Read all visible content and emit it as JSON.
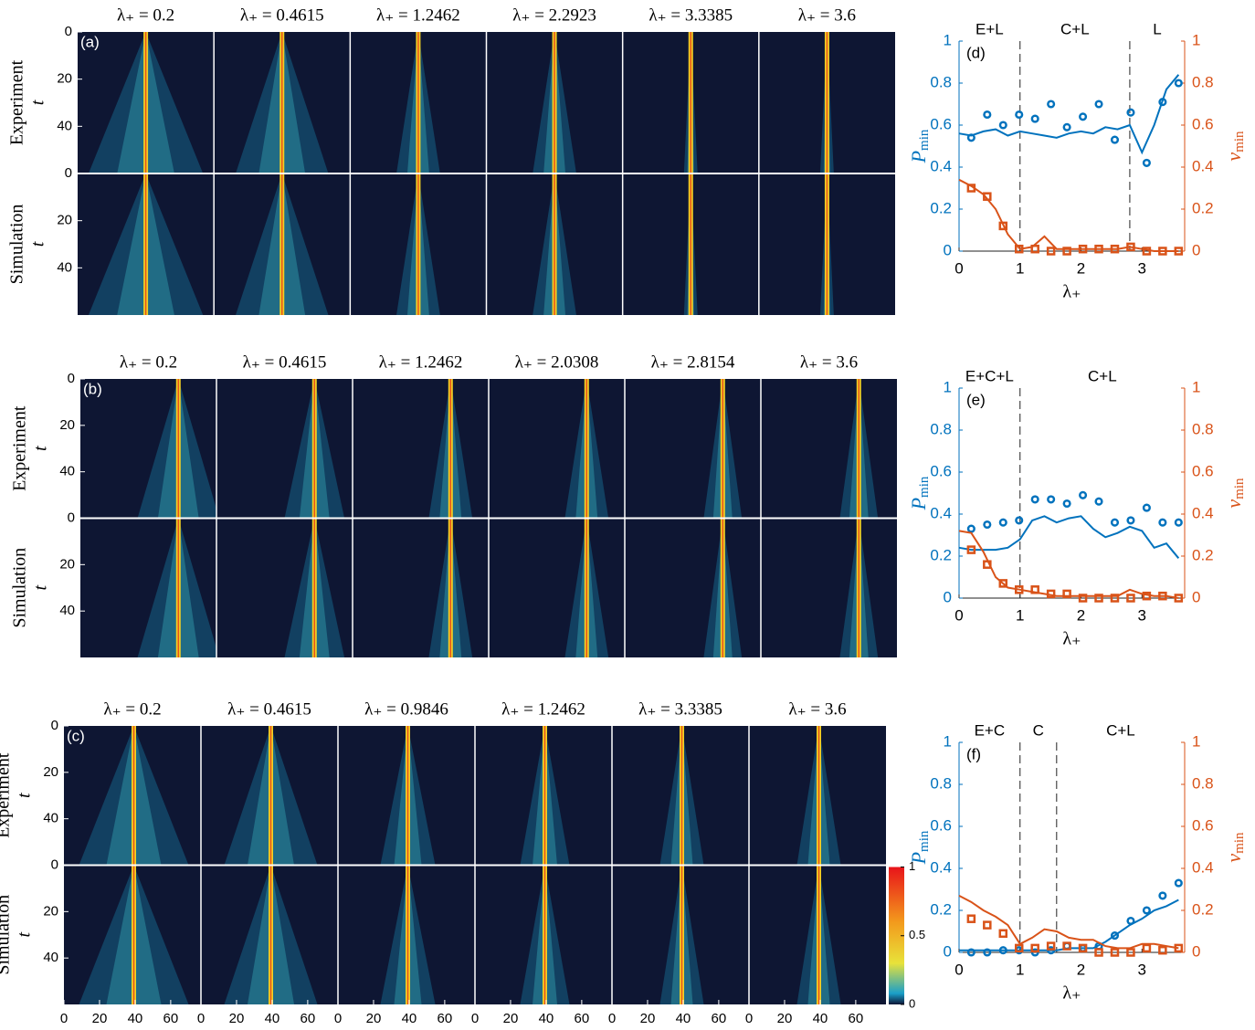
{
  "chart_data": [
    {
      "type": "heatmap",
      "label": "(a)",
      "titles": [
        "λ₊ = 0.2",
        "λ₊ = 0.4615",
        "λ₊ = 1.2462",
        "λ₊ = 2.2923",
        "λ₊ = 3.3385",
        "λ₊ = 3.6"
      ],
      "rows": [
        "Experiment",
        "Simulation"
      ],
      "ylabel": "t",
      "ylim": [
        0,
        60
      ],
      "yticks": [
        0,
        20,
        40
      ]
    },
    {
      "type": "heatmap",
      "label": "(b)",
      "titles": [
        "λ₊ = 0.2",
        "λ₊ = 0.4615",
        "λ₊ = 1.2462",
        "λ₊ = 2.0308",
        "λ₊ = 2.8154",
        "λ₊ = 3.6"
      ],
      "rows": [
        "Experiment",
        "Simulation"
      ],
      "ylabel": "t",
      "ylim": [
        0,
        60
      ],
      "yticks": [
        0,
        20,
        40
      ]
    },
    {
      "type": "heatmap",
      "label": "(c)",
      "titles": [
        "λ₊ = 0.2",
        "λ₊ = 0.4615",
        "λ₊ = 0.9846",
        "λ₊ = 1.2462",
        "λ₊ = 3.3385",
        "λ₊ = 3.6"
      ],
      "rows": [
        "Experiment",
        "Simulation"
      ],
      "ylabel": "t",
      "ylim": [
        0,
        60
      ],
      "yticks": [
        0,
        20,
        40
      ],
      "xlim": [
        0,
        77
      ],
      "xticks": [
        0,
        20,
        40,
        60
      ],
      "colorbar": {
        "ylim": [
          0,
          1
        ],
        "yticks": [
          0,
          0.5,
          1
        ]
      }
    },
    {
      "type": "line",
      "label": "(d)",
      "regions": [
        "E+L",
        "C+L",
        "L"
      ],
      "dividers": [
        1,
        2.8
      ],
      "xlabel": "λ₊",
      "ylabel": {
        "main": "P",
        "sub": "min"
      },
      "y2label": {
        "main": "v",
        "sub": "min"
      },
      "xlim": [
        0,
        3.7
      ],
      "xticks": [
        0,
        1,
        2,
        3
      ],
      "ylim": [
        0,
        1
      ],
      "yticks": [
        0,
        0.2,
        0.4,
        0.6,
        0.8,
        1
      ],
      "y2lim": [
        0,
        1
      ],
      "y2ticks": [
        0,
        0.2,
        0.4,
        0.6,
        0.8,
        1
      ],
      "series": [
        {
          "color": "#0072bd",
          "style": "line",
          "x": [
            0,
            0.2,
            0.4,
            0.6,
            0.8,
            1,
            1.2,
            1.4,
            1.6,
            1.8,
            2,
            2.2,
            2.4,
            2.6,
            2.8,
            3,
            3.2,
            3.4,
            3.6
          ],
          "values": [
            0.56,
            0.55,
            0.57,
            0.58,
            0.55,
            0.57,
            0.56,
            0.55,
            0.54,
            0.56,
            0.57,
            0.56,
            0.59,
            0.58,
            0.6,
            0.47,
            0.6,
            0.77,
            0.84
          ]
        },
        {
          "color": "#0072bd",
          "style": "marker",
          "marker": "circle",
          "x": [
            0.2,
            0.4615,
            0.7231,
            0.9846,
            1.2462,
            1.5077,
            1.7692,
            2.0308,
            2.2923,
            2.5538,
            2.8154,
            3.0769,
            3.3385,
            3.6
          ],
          "values": [
            0.54,
            0.65,
            0.6,
            0.65,
            0.63,
            0.7,
            0.59,
            0.64,
            0.7,
            0.53,
            0.66,
            0.42,
            0.71,
            0.8
          ]
        },
        {
          "color": "#d95319",
          "style": "line",
          "axis": "y2",
          "x": [
            0,
            0.2,
            0.4,
            0.6,
            0.8,
            1,
            1.2,
            1.4,
            1.6,
            1.8,
            2,
            2.2,
            2.4,
            2.6,
            2.8,
            3,
            3.2,
            3.4,
            3.6
          ],
          "values": [
            0.34,
            0.31,
            0.27,
            0.2,
            0.08,
            0.01,
            0.02,
            0.07,
            0.01,
            0.01,
            0.01,
            0.01,
            0.01,
            0.01,
            0.02,
            0.01,
            0,
            0,
            0
          ]
        },
        {
          "color": "#d95319",
          "style": "marker",
          "marker": "square",
          "axis": "y2",
          "x": [
            0.2,
            0.4615,
            0.7231,
            0.9846,
            1.2462,
            1.5077,
            1.7692,
            2.0308,
            2.2923,
            2.5538,
            2.8154,
            3.0769,
            3.3385,
            3.6
          ],
          "values": [
            0.3,
            0.26,
            0.12,
            0.01,
            0.01,
            0,
            0,
            0.01,
            0.01,
            0.01,
            0.02,
            0,
            0,
            0
          ]
        }
      ]
    },
    {
      "type": "line",
      "label": "(e)",
      "regions": [
        "E+C+L",
        "C+L"
      ],
      "dividers": [
        1
      ],
      "xlabel": "λ₊",
      "ylabel": {
        "main": "P",
        "sub": "min"
      },
      "y2label": {
        "main": "v",
        "sub": "min"
      },
      "xlim": [
        0,
        3.7
      ],
      "xticks": [
        0,
        1,
        2,
        3
      ],
      "ylim": [
        0,
        1
      ],
      "yticks": [
        0,
        0.2,
        0.4,
        0.6,
        0.8,
        1
      ],
      "y2lim": [
        0,
        1
      ],
      "y2ticks": [
        0,
        0.2,
        0.4,
        0.6,
        0.8,
        1
      ],
      "series": [
        {
          "color": "#0072bd",
          "style": "line",
          "x": [
            0,
            0.2,
            0.4,
            0.6,
            0.8,
            1,
            1.2,
            1.4,
            1.6,
            1.8,
            2,
            2.2,
            2.4,
            2.6,
            2.8,
            3,
            3.2,
            3.4,
            3.6
          ],
          "values": [
            0.24,
            0.23,
            0.23,
            0.23,
            0.24,
            0.28,
            0.37,
            0.39,
            0.36,
            0.38,
            0.39,
            0.33,
            0.29,
            0.31,
            0.34,
            0.32,
            0.24,
            0.26,
            0.19
          ]
        },
        {
          "color": "#0072bd",
          "style": "marker",
          "marker": "circle",
          "x": [
            0.2,
            0.4615,
            0.7231,
            0.9846,
            1.2462,
            1.5077,
            1.7692,
            2.0308,
            2.2923,
            2.5538,
            2.8154,
            3.0769,
            3.3385,
            3.6
          ],
          "values": [
            0.33,
            0.35,
            0.36,
            0.37,
            0.47,
            0.47,
            0.45,
            0.49,
            0.46,
            0.36,
            0.37,
            0.43,
            0.36,
            0.36
          ]
        },
        {
          "color": "#d95319",
          "style": "line",
          "axis": "y2",
          "x": [
            0,
            0.2,
            0.4,
            0.6,
            0.8,
            1,
            1.2,
            1.4,
            1.6,
            1.8,
            2,
            2.2,
            2.4,
            2.6,
            2.8,
            3,
            3.2,
            3.4,
            3.6
          ],
          "values": [
            0.32,
            0.31,
            0.22,
            0.1,
            0.05,
            0.04,
            0.03,
            0.02,
            0.01,
            0.01,
            0.01,
            0.01,
            0.01,
            0.01,
            0.04,
            0.02,
            0.01,
            0.01,
            0
          ]
        },
        {
          "color": "#d95319",
          "style": "marker",
          "marker": "square",
          "axis": "y2",
          "x": [
            0.2,
            0.4615,
            0.7231,
            0.9846,
            1.2462,
            1.5077,
            1.7692,
            2.0308,
            2.2923,
            2.5538,
            2.8154,
            3.0769,
            3.3385,
            3.6
          ],
          "values": [
            0.23,
            0.16,
            0.07,
            0.04,
            0.04,
            0.02,
            0.02,
            0,
            0,
            0,
            0,
            0.01,
            0.01,
            0
          ]
        }
      ]
    },
    {
      "type": "line",
      "label": "(f)",
      "regions": [
        "E+C",
        "C",
        "C+L"
      ],
      "dividers": [
        1,
        1.6
      ],
      "xlabel": "λ₊",
      "ylabel": {
        "main": "P",
        "sub": "min"
      },
      "y2label": {
        "main": "v",
        "sub": "min"
      },
      "xlim": [
        0,
        3.7
      ],
      "xticks": [
        0,
        1,
        2,
        3
      ],
      "ylim": [
        0,
        1
      ],
      "yticks": [
        0,
        0.2,
        0.4,
        0.6,
        0.8,
        1
      ],
      "y2lim": [
        0,
        1
      ],
      "y2ticks": [
        0,
        0.2,
        0.4,
        0.6,
        0.8,
        1
      ],
      "series": [
        {
          "color": "#0072bd",
          "style": "line",
          "x": [
            0,
            0.2,
            0.4,
            0.6,
            0.8,
            1,
            1.2,
            1.4,
            1.6,
            1.8,
            2,
            2.2,
            2.4,
            2.6,
            2.8,
            3,
            3.2,
            3.4,
            3.6
          ],
          "values": [
            0.01,
            0.01,
            0.01,
            0.01,
            0.01,
            0.01,
            0.01,
            0.01,
            0.01,
            0.02,
            0.02,
            0.02,
            0.05,
            0.09,
            0.13,
            0.16,
            0.2,
            0.22,
            0.25
          ]
        },
        {
          "color": "#0072bd",
          "style": "marker",
          "marker": "circle",
          "x": [
            0.2,
            0.4615,
            0.7231,
            0.9846,
            1.2462,
            1.5077,
            1.7692,
            2.0308,
            2.2923,
            2.5538,
            2.8154,
            3.0769,
            3.3385,
            3.6
          ],
          "values": [
            0,
            0,
            0.01,
            0.01,
            0,
            0.01,
            0.03,
            0.02,
            0.03,
            0.08,
            0.15,
            0.2,
            0.27,
            0.33
          ]
        },
        {
          "color": "#d95319",
          "style": "line",
          "axis": "y2",
          "x": [
            0,
            0.2,
            0.4,
            0.6,
            0.8,
            1,
            1.2,
            1.4,
            1.6,
            1.8,
            2,
            2.2,
            2.4,
            2.6,
            2.8,
            3,
            3.2,
            3.4,
            3.6
          ],
          "values": [
            0.27,
            0.24,
            0.2,
            0.17,
            0.13,
            0.04,
            0.07,
            0.11,
            0.1,
            0.07,
            0.06,
            0.06,
            0.03,
            0.02,
            0.02,
            0.04,
            0.04,
            0.03,
            0.02
          ]
        },
        {
          "color": "#d95319",
          "style": "marker",
          "marker": "square",
          "axis": "y2",
          "x": [
            0.2,
            0.4615,
            0.7231,
            0.9846,
            1.2462,
            1.5077,
            1.7692,
            2.0308,
            2.2923,
            2.5538,
            2.8154,
            3.0769,
            3.3385,
            3.6
          ],
          "values": [
            0.16,
            0.13,
            0.09,
            0.02,
            0.02,
            0.03,
            0.03,
            0.02,
            0,
            0,
            0,
            0.02,
            0.01,
            0.02
          ]
        }
      ]
    }
  ]
}
